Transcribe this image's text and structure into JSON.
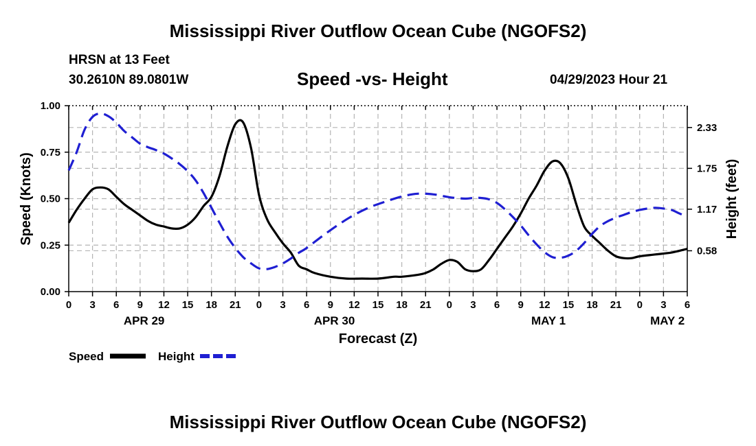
{
  "header": {
    "title": "Mississippi River Outflow Ocean Cube (NGOFS2)",
    "station": "HRSN at 13 Feet",
    "coords": "30.2610N  89.0801W",
    "datetime": "04/29/2023 Hour 21"
  },
  "footer": {
    "title": "Mississippi River Outflow Ocean Cube (NGOFS2)"
  },
  "chart_data": {
    "type": "line",
    "title": "Speed -vs- Height",
    "xlabel": "Forecast (Z)",
    "ylabel_left": "Speed (Knots)",
    "ylabel_right": "Height (feet)",
    "x_unit": "hours since Apr 29 00Z",
    "xlim": [
      0,
      78
    ],
    "ylim_left": [
      0,
      1.0
    ],
    "ylim_right": [
      0.0,
      2.64
    ],
    "grid": true,
    "x_ticks": [
      0,
      3,
      6,
      9,
      12,
      15,
      18,
      21,
      24,
      27,
      30,
      33,
      36,
      39,
      42,
      45,
      48,
      51,
      54,
      57,
      60,
      63,
      66,
      69,
      72,
      75,
      78
    ],
    "x_tick_labels": [
      "0",
      "3",
      "6",
      "9",
      "12",
      "15",
      "18",
      "21",
      "0",
      "3",
      "6",
      "9",
      "12",
      "15",
      "18",
      "21",
      "0",
      "3",
      "6",
      "9",
      "12",
      "15",
      "18",
      "21",
      "0",
      "3",
      "6"
    ],
    "left_ticks": [
      0.0,
      0.25,
      0.5,
      0.75,
      1.0
    ],
    "left_tick_labels": [
      "0.00",
      "0.25",
      "0.50",
      "0.75",
      "1.00"
    ],
    "right_ticks": [
      0.58,
      1.17,
      1.75,
      2.33
    ],
    "right_tick_labels": [
      "0.58",
      "1.17",
      "1.75",
      "2.33"
    ],
    "date_labels": [
      {
        "x": 9.5,
        "label": "APR 29"
      },
      {
        "x": 33.5,
        "label": "APR 30"
      },
      {
        "x": 60.5,
        "label": "MAY 1"
      },
      {
        "x": 75.5,
        "label": "MAY 2"
      }
    ],
    "series": [
      {
        "name": "Speed",
        "axis": "left",
        "color": "#000000",
        "dash": "solid",
        "x": [
          0,
          1,
          2,
          3,
          4,
          5,
          6,
          7,
          8,
          9,
          10,
          11,
          12,
          13,
          14,
          15,
          16,
          17,
          18,
          19,
          20,
          21,
          22,
          23,
          24,
          25,
          26,
          27,
          28,
          29,
          30,
          31,
          33,
          35,
          37,
          39,
          41,
          42,
          44,
          45,
          46,
          47,
          48,
          49,
          50,
          51,
          52,
          53,
          54,
          55,
          56,
          57,
          58,
          59,
          60,
          61,
          62,
          63,
          64,
          65,
          66,
          67,
          68,
          69,
          70,
          71,
          72,
          74,
          76,
          78
        ],
        "values": [
          0.37,
          0.44,
          0.5,
          0.55,
          0.56,
          0.55,
          0.51,
          0.47,
          0.44,
          0.41,
          0.38,
          0.36,
          0.35,
          0.34,
          0.34,
          0.36,
          0.4,
          0.46,
          0.51,
          0.62,
          0.78,
          0.9,
          0.91,
          0.77,
          0.52,
          0.39,
          0.32,
          0.26,
          0.21,
          0.14,
          0.12,
          0.1,
          0.08,
          0.07,
          0.07,
          0.07,
          0.08,
          0.08,
          0.09,
          0.1,
          0.12,
          0.15,
          0.17,
          0.16,
          0.12,
          0.11,
          0.12,
          0.17,
          0.23,
          0.29,
          0.35,
          0.42,
          0.5,
          0.57,
          0.65,
          0.7,
          0.69,
          0.61,
          0.47,
          0.35,
          0.3,
          0.26,
          0.22,
          0.19,
          0.18,
          0.18,
          0.19,
          0.2,
          0.21,
          0.23
        ]
      },
      {
        "name": "Height",
        "axis": "right",
        "color": "#1f1fd2",
        "dash": "dashed",
        "x": [
          0,
          1,
          2,
          3,
          4,
          5,
          6,
          7,
          8,
          9,
          10,
          11,
          12,
          13,
          14,
          15,
          16,
          17,
          18,
          19,
          20,
          21,
          22,
          23,
          24,
          25,
          26,
          27,
          28,
          29,
          30,
          32,
          34,
          36,
          38,
          40,
          42,
          44,
          46,
          48,
          50,
          51,
          52,
          53,
          54,
          55,
          56,
          57,
          58,
          59,
          60,
          61,
          62,
          63,
          64,
          65,
          66,
          67,
          68,
          69,
          70,
          71,
          72,
          73,
          74,
          75,
          76,
          77,
          78
        ],
        "values": [
          1.72,
          1.98,
          2.3,
          2.48,
          2.53,
          2.49,
          2.4,
          2.28,
          2.19,
          2.1,
          2.05,
          2.01,
          1.96,
          1.89,
          1.81,
          1.71,
          1.58,
          1.4,
          1.19,
          0.98,
          0.78,
          0.62,
          0.49,
          0.4,
          0.33,
          0.32,
          0.35,
          0.4,
          0.47,
          0.55,
          0.62,
          0.79,
          0.95,
          1.09,
          1.2,
          1.28,
          1.35,
          1.39,
          1.38,
          1.34,
          1.32,
          1.33,
          1.33,
          1.31,
          1.26,
          1.17,
          1.06,
          0.94,
          0.8,
          0.67,
          0.56,
          0.49,
          0.48,
          0.51,
          0.58,
          0.69,
          0.82,
          0.93,
          1.0,
          1.05,
          1.09,
          1.13,
          1.16,
          1.18,
          1.19,
          1.18,
          1.16,
          1.11,
          1.06
        ]
      }
    ],
    "legend": [
      {
        "label": "Speed",
        "color": "#000000",
        "dash": "solid"
      },
      {
        "label": "Height",
        "color": "#1f1fd2",
        "dash": "dashed"
      }
    ]
  }
}
